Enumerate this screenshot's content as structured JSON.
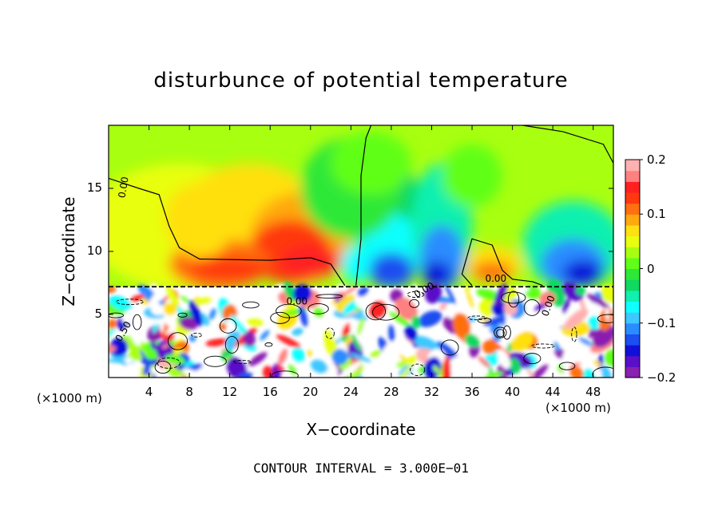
{
  "chart_data": {
    "type": "heatmap",
    "title": "disturbunce of potential temperature",
    "xlabel": "X−coordinate",
    "ylabel": "Z−coordinate",
    "x_unit": "(×1000 m)",
    "x_ticks": [
      "4",
      "8",
      "12",
      "16",
      "20",
      "24",
      "28",
      "32",
      "36",
      "40",
      "44",
      "48"
    ],
    "y_ticks": [
      "5",
      "10",
      "15"
    ],
    "xlim": [
      0,
      50
    ],
    "ylim": [
      0,
      20
    ],
    "colorbar": {
      "range": [
        -0.2,
        0.2
      ],
      "tick_labels": [
        "0.2",
        "0.1",
        "0",
        "−0.1",
        "−0.2"
      ],
      "colors": [
        "#8a1fb0",
        "#5a10c8",
        "#1010d8",
        "#1c4ef0",
        "#2a8cff",
        "#3ec8ff",
        "#10ffff",
        "#10f0b0",
        "#10d860",
        "#2ee838",
        "#60ff18",
        "#a8ff10",
        "#e8ff10",
        "#ffe010",
        "#ffa810",
        "#ff7010",
        "#ff3810",
        "#ff2020",
        "#ff8080",
        "#ffb0b0"
      ]
    },
    "contour_labels": [
      "0.00",
      "0.00",
      "0.00",
      "0.00",
      "0.50",
      "0.00"
    ],
    "contour_interval_note": "CONTOUR INTERVAL = 3.000E−01"
  }
}
